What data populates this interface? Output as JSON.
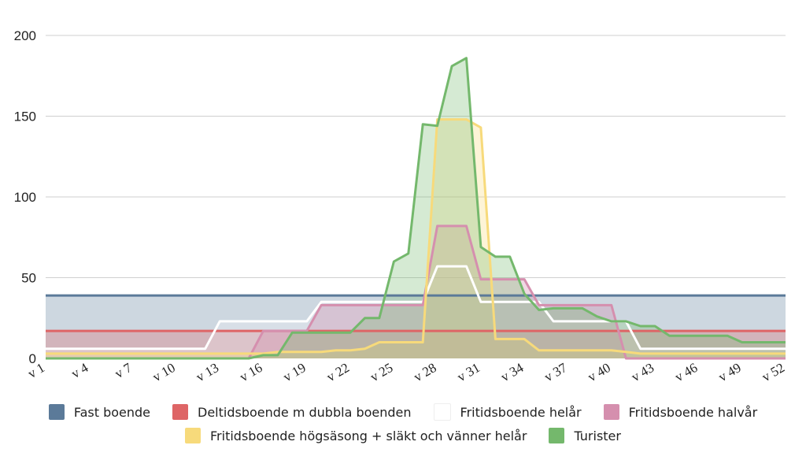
{
  "chart_data": {
    "type": "area",
    "ylim": [
      0,
      200
    ],
    "yticks": [
      0,
      50,
      100,
      150,
      200
    ],
    "x": [
      "v 1",
      "v 2",
      "v 3",
      "v 4",
      "v 5",
      "v 6",
      "v 7",
      "v 8",
      "v 9",
      "v 10",
      "v 11",
      "v 12",
      "v 13",
      "v 14",
      "v 15",
      "v 16",
      "v 17",
      "v 18",
      "v 19",
      "v 20",
      "v 21",
      "v 22",
      "v 23",
      "v 24",
      "v 25",
      "v 26",
      "v 27",
      "v 28",
      "v 29",
      "v 30",
      "v 31",
      "v 32",
      "v 33",
      "v 34",
      "v 35",
      "v 36",
      "v 37",
      "v 38",
      "v 39",
      "v 40",
      "v 41",
      "v 42",
      "v 43",
      "v 44",
      "v 45",
      "v 46",
      "v 47",
      "v 48",
      "v 49",
      "v 50",
      "v 51",
      "v 52"
    ],
    "xtick_labels": [
      "v 1",
      "v 4",
      "v 7",
      "v 10",
      "v 13",
      "v 16",
      "v 19",
      "v 22",
      "v 25",
      "v 28",
      "v 31",
      "v 34",
      "v 37",
      "v 40",
      "v 43",
      "v 46",
      "v 49",
      "v 52"
    ],
    "grid": true,
    "legend_position": "bottom",
    "series": [
      {
        "name": "Fast boende",
        "color": "#5b7a99",
        "values": [
          39,
          39,
          39,
          39,
          39,
          39,
          39,
          39,
          39,
          39,
          39,
          39,
          39,
          39,
          39,
          39,
          39,
          39,
          39,
          39,
          39,
          39,
          39,
          39,
          39,
          39,
          39,
          39,
          39,
          39,
          39,
          39,
          39,
          39,
          39,
          39,
          39,
          39,
          39,
          39,
          39,
          39,
          39,
          39,
          39,
          39,
          39,
          39,
          39,
          39,
          39,
          39
        ]
      },
      {
        "name": "Deltidsboende m dubbla boenden",
        "color": "#de6566",
        "values": [
          17,
          17,
          17,
          17,
          17,
          17,
          17,
          17,
          17,
          17,
          17,
          17,
          17,
          17,
          17,
          17,
          17,
          17,
          17,
          17,
          17,
          17,
          17,
          17,
          17,
          17,
          17,
          17,
          17,
          17,
          17,
          17,
          17,
          17,
          17,
          17,
          17,
          17,
          17,
          17,
          17,
          17,
          17,
          17,
          17,
          17,
          17,
          17,
          17,
          17,
          17,
          17
        ]
      },
      {
        "name": "Fritidsboende helår",
        "color": "#ffffff",
        "values": [
          6,
          6,
          6,
          6,
          6,
          6,
          6,
          6,
          6,
          6,
          6,
          6,
          23,
          23,
          23,
          23,
          23,
          23,
          23,
          35,
          35,
          35,
          35,
          35,
          35,
          35,
          35,
          57,
          57,
          57,
          35,
          35,
          35,
          35,
          35,
          23,
          23,
          23,
          23,
          23,
          23,
          6,
          6,
          6,
          6,
          6,
          6,
          6,
          6,
          6,
          6,
          6
        ]
      },
      {
        "name": "Fritidsboende halvår",
        "color": "#d58fae",
        "values": [
          0,
          0,
          0,
          0,
          0,
          0,
          0,
          0,
          0,
          0,
          0,
          0,
          0,
          0,
          0,
          17,
          17,
          17,
          17,
          33,
          33,
          33,
          33,
          33,
          33,
          33,
          33,
          82,
          82,
          82,
          49,
          49,
          49,
          49,
          33,
          33,
          33,
          33,
          33,
          33,
          0,
          0,
          0,
          0,
          0,
          0,
          0,
          0,
          0,
          0,
          0,
          0
        ]
      },
      {
        "name": "Fritidsboende högsäsong + släkt och vänner helår",
        "color": "#f7da7b",
        "values": [
          3,
          3,
          3,
          3,
          3,
          3,
          3,
          3,
          3,
          3,
          3,
          3,
          3,
          3,
          3,
          3,
          4,
          4,
          4,
          4,
          5,
          5,
          6,
          10,
          10,
          10,
          10,
          148,
          148,
          148,
          143,
          12,
          12,
          12,
          5,
          5,
          5,
          5,
          5,
          5,
          4,
          3,
          3,
          3,
          3,
          3,
          3,
          3,
          3,
          3,
          3,
          3
        ]
      },
      {
        "name": "Turister",
        "color": "#74b86c",
        "values": [
          0,
          0,
          0,
          0,
          0,
          0,
          0,
          0,
          0,
          0,
          0,
          0,
          0,
          0,
          0,
          2,
          2,
          16,
          16,
          16,
          16,
          16,
          25,
          25,
          60,
          65,
          145,
          144,
          181,
          186,
          69,
          63,
          63,
          40,
          30,
          31,
          31,
          31,
          26,
          23,
          23,
          20,
          20,
          14,
          14,
          14,
          14,
          14,
          10,
          10,
          10,
          10
        ]
      }
    ]
  }
}
